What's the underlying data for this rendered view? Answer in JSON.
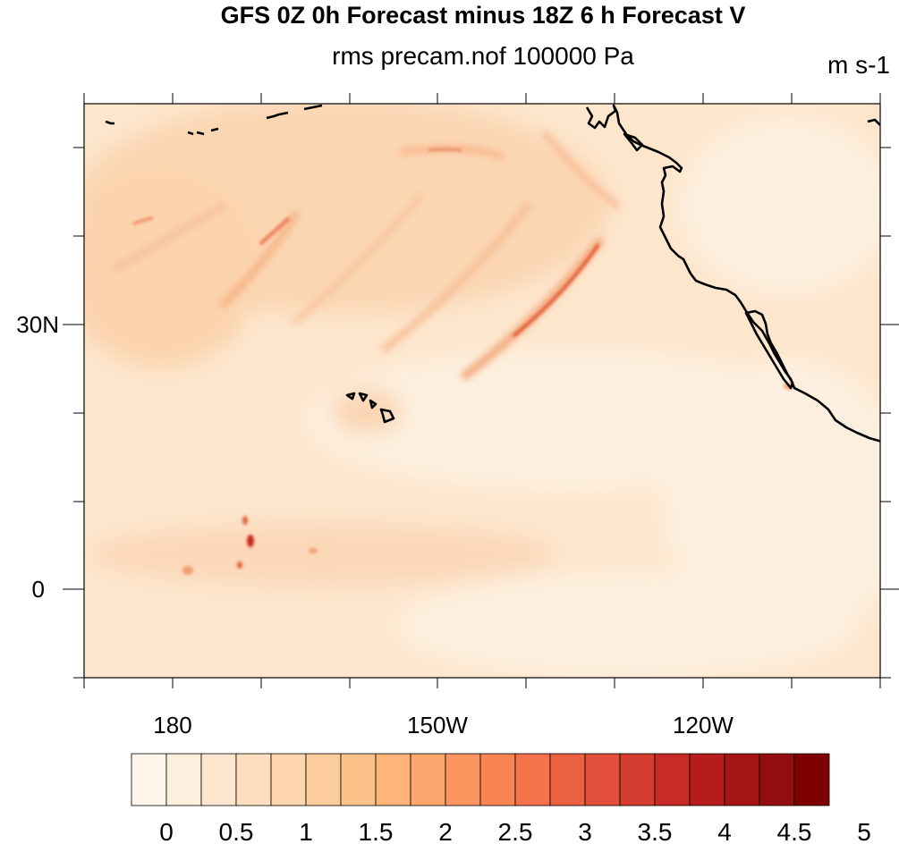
{
  "header": {
    "title": "GFS 0Z 0h Forecast minus 18Z 6 h Forecast V",
    "subtitle": "rms precam.nof 100000 Pa",
    "units": "m s-1"
  },
  "map": {
    "lon_range": [
      170,
      260
    ],
    "lat_range": [
      -10,
      55
    ],
    "x_tick_labels": [
      "180",
      "150W",
      "120W"
    ],
    "y_tick_labels": [
      "30N",
      "0"
    ],
    "field_colors": {
      "background": "#fde6cc",
      "low": "#fdefde",
      "mid": "#fbd2ab",
      "high": "#f09a6e",
      "max": "#cc2a1a"
    },
    "coastline_color": "#000000",
    "features": [
      "North American west coast",
      "Baja California",
      "Hawaiian Islands",
      "Aleutian Islands"
    ]
  },
  "colorbar": {
    "colors": [
      "#fff5eb",
      "#feeedd",
      "#fee6ce",
      "#fddfc0",
      "#fdd6ae",
      "#fdcc9c",
      "#fdc18a",
      "#fdb57a",
      "#fda66d",
      "#fc9660",
      "#f98554",
      "#f4734a",
      "#ec6142",
      "#e14f3a",
      "#d53d31",
      "#c82b26",
      "#b71c1c",
      "#a51515",
      "#930f0f",
      "#7f0000"
    ],
    "labels": [
      "0",
      "0.5",
      "1",
      "1.5",
      "2",
      "2.5",
      "3",
      "3.5",
      "4",
      "4.5",
      "5"
    ]
  }
}
